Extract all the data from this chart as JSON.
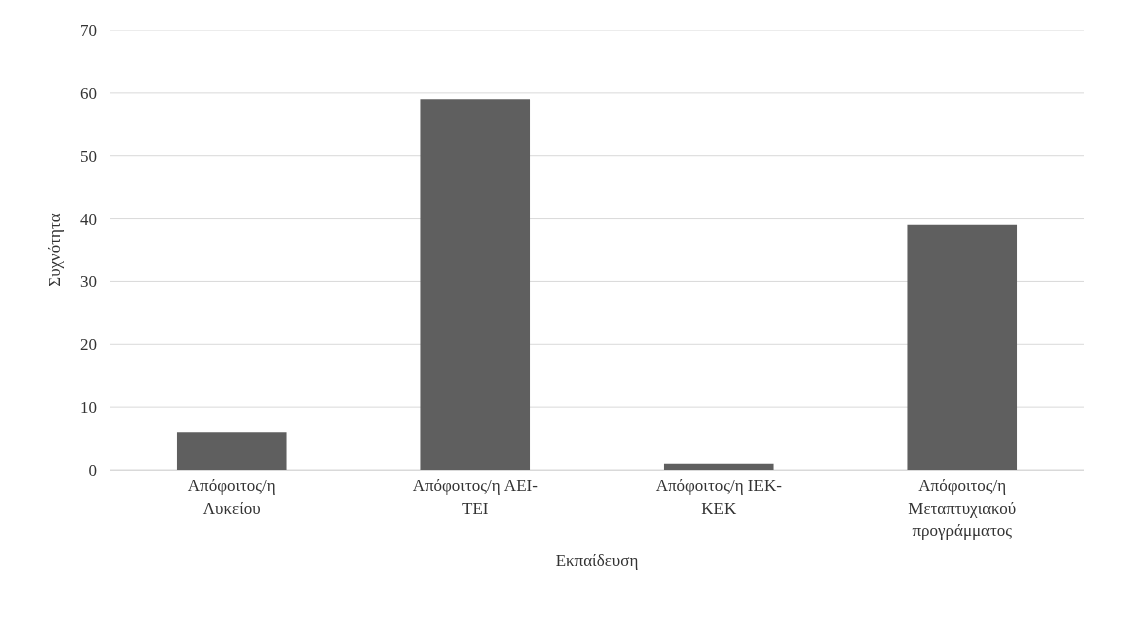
{
  "chart_data": {
    "type": "bar",
    "xlabel": "Εκπαίδευση",
    "ylabel": "Συχνότητα",
    "categories": [
      "Απόφοιτος/η Λυκείου",
      "Απόφοιτος/η ΑΕΙ-ΤΕΙ",
      "Απόφοιτος/η ΙΕΚ-ΚΕΚ",
      "Απόφοιτος/η Μεταπτυχιακού προγράμματος"
    ],
    "values": [
      6,
      59,
      1,
      39
    ],
    "color": "#5f5f5f",
    "ylim": [
      0,
      70
    ],
    "yticks": [
      0,
      10,
      20,
      30,
      40,
      50,
      60,
      70
    ],
    "grid": "y"
  }
}
